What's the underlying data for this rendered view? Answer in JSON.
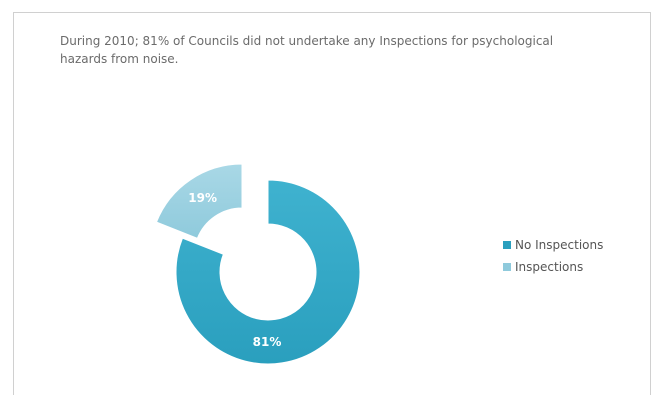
{
  "chart_data": {
    "type": "pie",
    "title": "During 2010; 81% of Councils did not undertake any Inspections for psychological hazards from noise.",
    "slices": [
      {
        "label": "No Inspections",
        "value": 81,
        "data_label": "81%",
        "color": "#2a9fbe"
      },
      {
        "label": "Inspections",
        "value": 19,
        "data_label": "19%",
        "color": "#8fcadc"
      }
    ],
    "style": "doughnut, exploded",
    "legend": "right"
  }
}
